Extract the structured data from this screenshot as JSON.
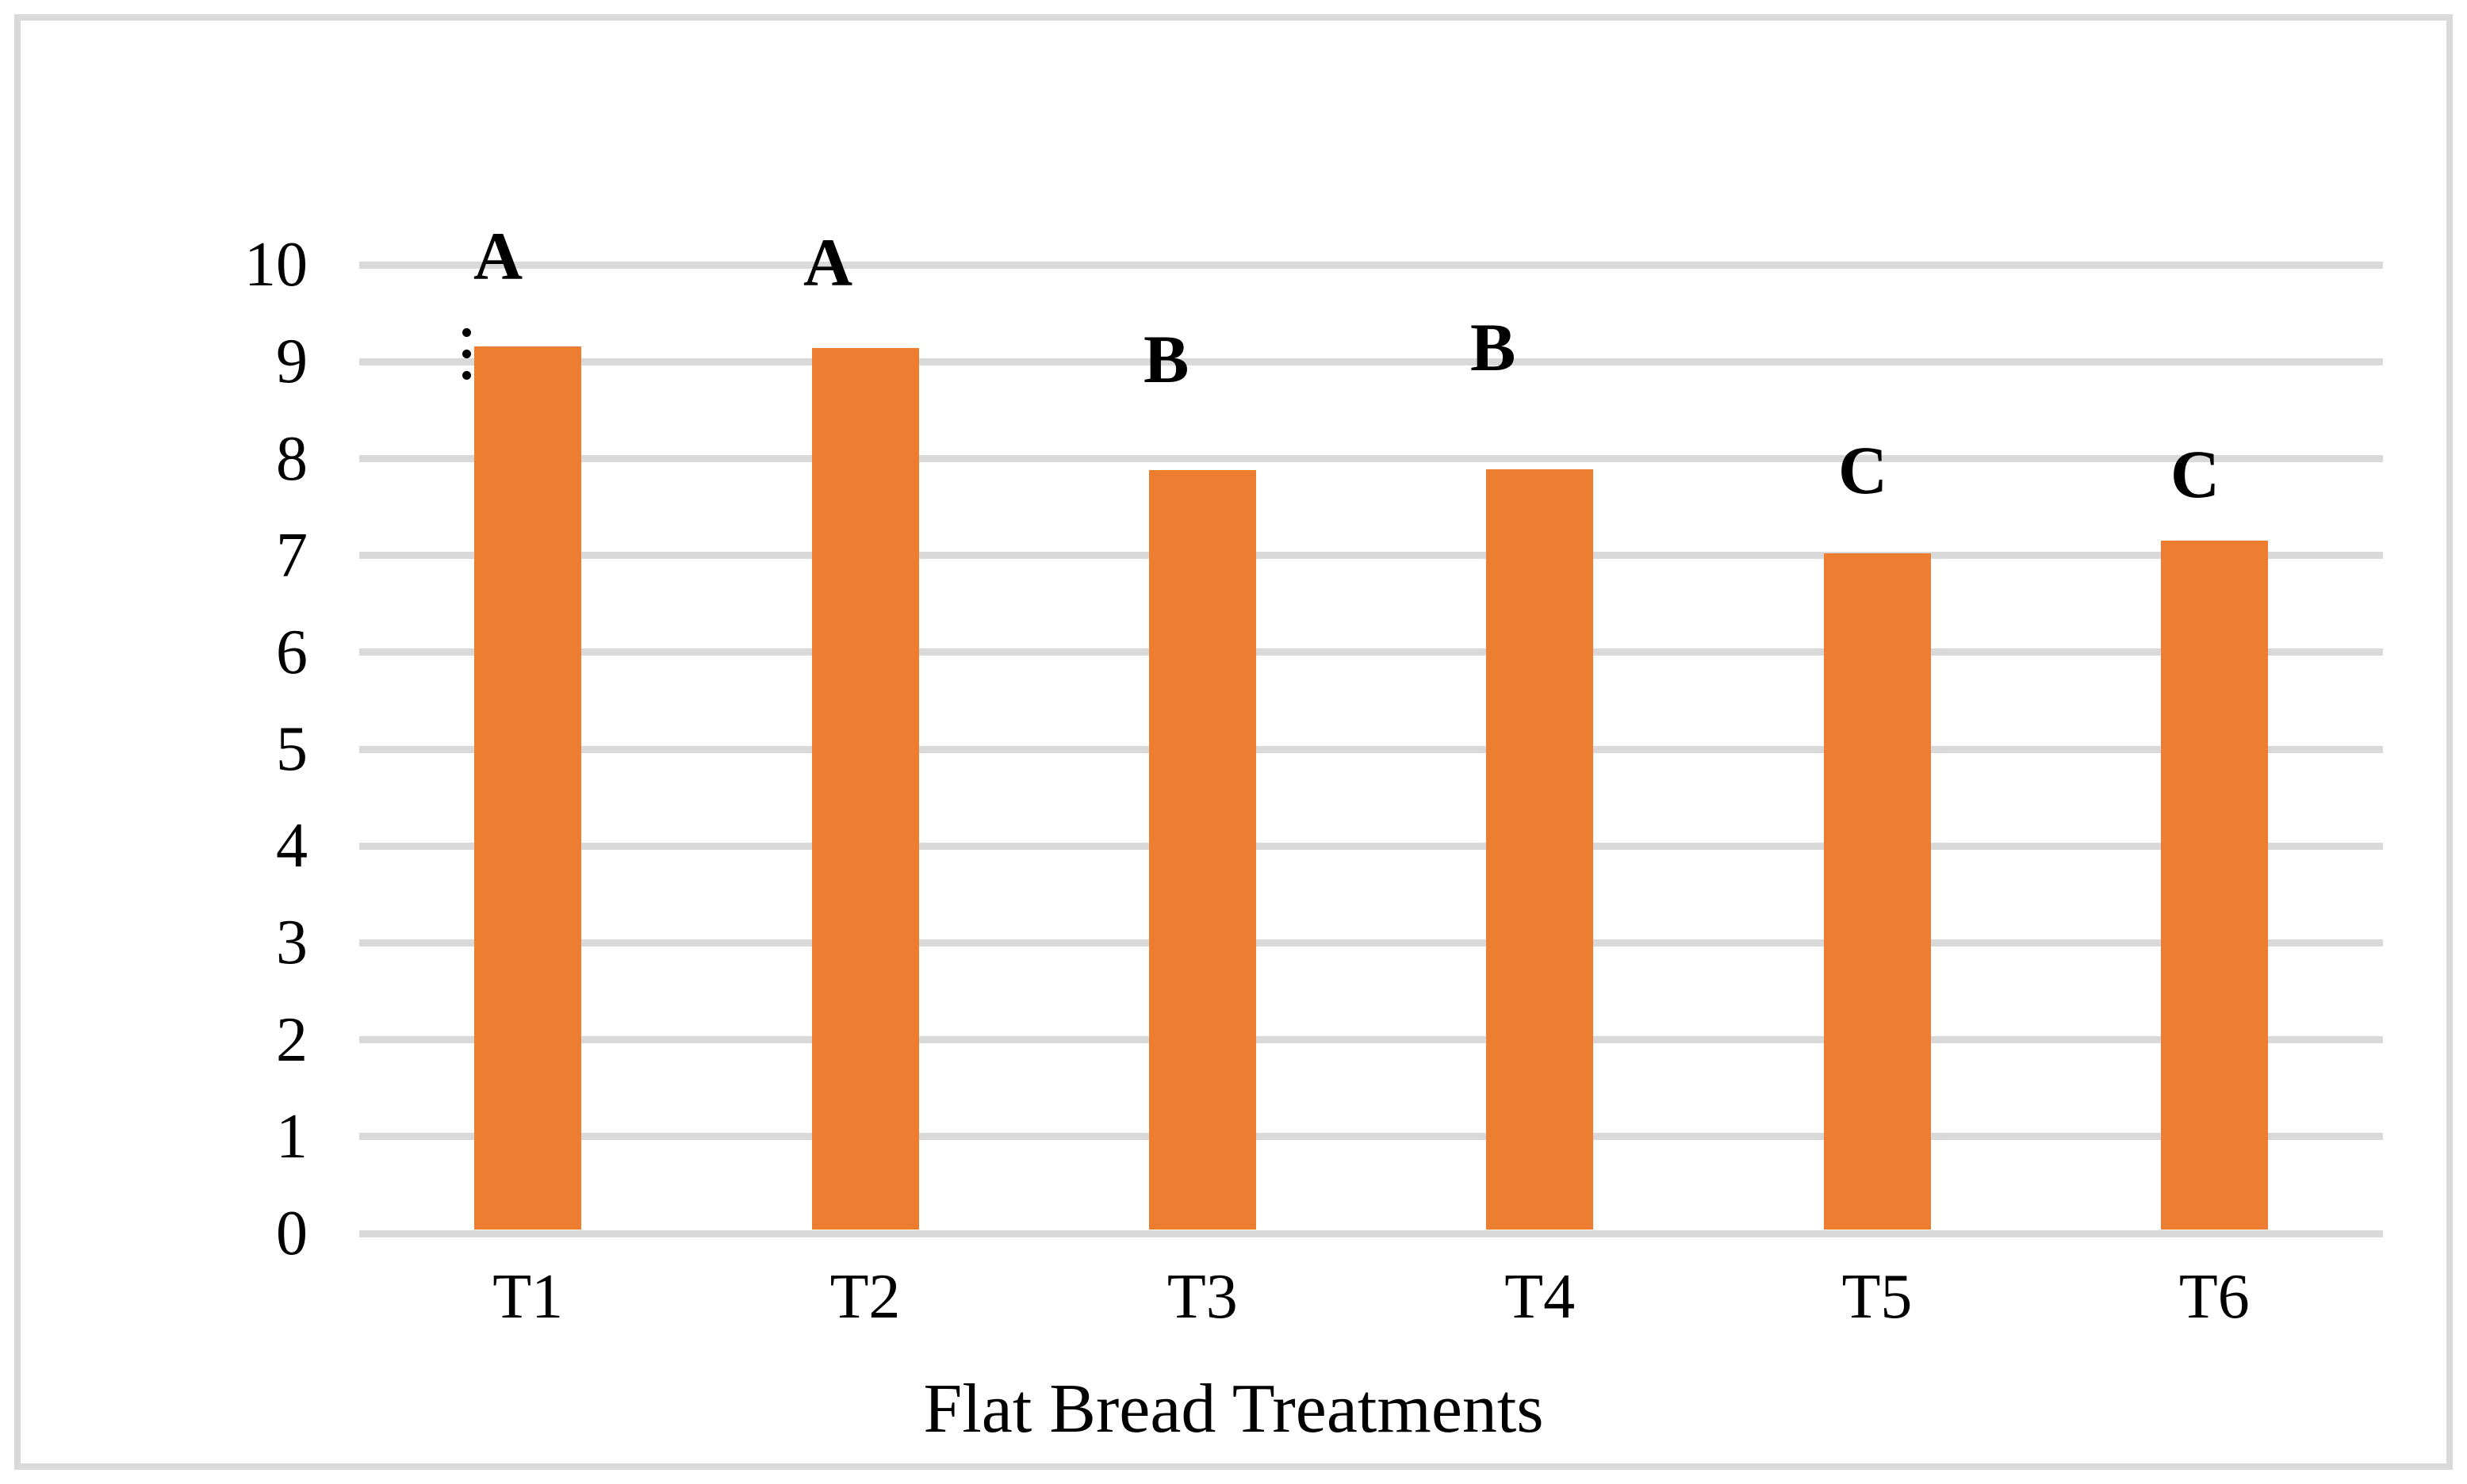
{
  "figure": {
    "background": "#FFFFFF",
    "border_color": "#D9D9D9"
  },
  "chart_data": {
    "type": "bar",
    "title": "",
    "xlabel": "Flat Bread Treatments",
    "ylabel": "",
    "categories": [
      "T1",
      "T2",
      "T3",
      "T4",
      "T5",
      "T6"
    ],
    "values": [
      9.16,
      9.14,
      7.88,
      7.89,
      7.02,
      7.15
    ],
    "significance_letters": [
      "A",
      "A",
      "B",
      "B",
      "C",
      "C"
    ],
    "ylim": [
      0,
      10
    ],
    "yticks": [
      0,
      1,
      2,
      3,
      4,
      5,
      6,
      7,
      8,
      9,
      10
    ],
    "grid": true,
    "legend": "none",
    "bar_color": "#ED7D31",
    "gridline_color": "#D9D9D9",
    "axis_line_color": "#D9D9D9",
    "text_color": "#000000",
    "letter_layout": [
      {
        "x": 597,
        "top": 280
      },
      {
        "x": 1013,
        "top": 288
      },
      {
        "x": 1442,
        "top": 410
      },
      {
        "x": 1854,
        "top": 395
      },
      {
        "x": 2318,
        "top": 550
      },
      {
        "x": 2737,
        "top": 555
      }
    ],
    "stray_dots_marker": {
      "color": "#000000",
      "x": 583,
      "dot_tops": [
        414,
        441,
        468
      ],
      "size": 11
    }
  }
}
